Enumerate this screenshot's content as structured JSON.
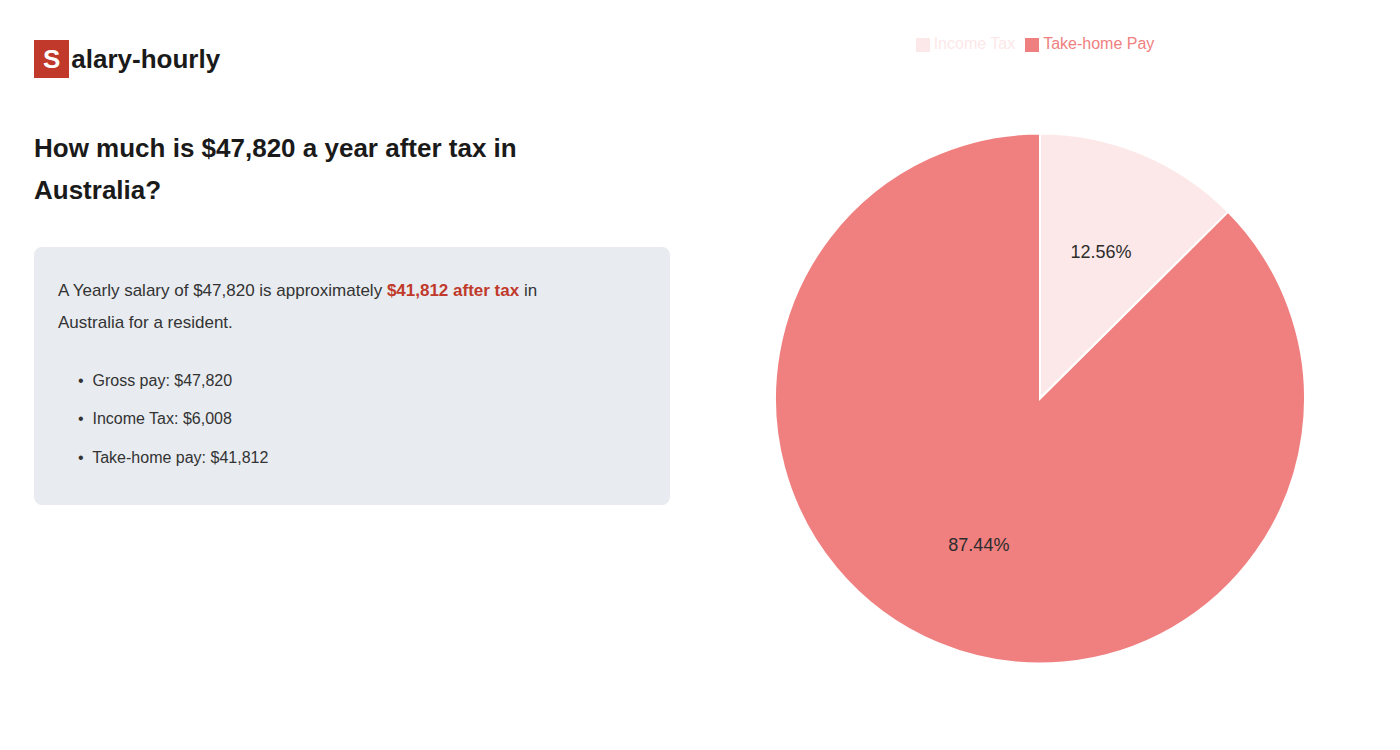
{
  "chart_data": {
    "type": "pie",
    "title": [
      "How much is $47,820 a year after tax in",
      "Australia?"
    ],
    "annotations": [
      [
        {
          "text": "S",
          "color": "#c0392b"
        },
        {
          "text": "alary-hourly",
          "color": "#1a1a1a"
        }
      ],
      [
        {
          "text": "A Yearly salary of $47,820 is approximately "
        },
        {
          "text": "$41,812 after tax",
          "color": "#c0392b"
        },
        {
          "text": " in"
        }
      ],
      [
        {
          "text": "Australia for a resident."
        }
      ],
      [
        {
          "text": "•  Gross pay: $47,820"
        }
      ],
      [
        {
          "text": "•  Income Tax: $6,008"
        }
      ],
      [
        {
          "text": "•  Take-home pay: $41,812"
        }
      ]
    ],
    "categories": [
      "Income Tax",
      "Take-home Pay"
    ],
    "values": [
      12.56,
      87.44
    ],
    "value_labels": [
      "12.56%",
      "87.44%"
    ],
    "colors": [
      "#fce8e8",
      "#f08080"
    ],
    "data_labels": true,
    "legend": "top"
  }
}
